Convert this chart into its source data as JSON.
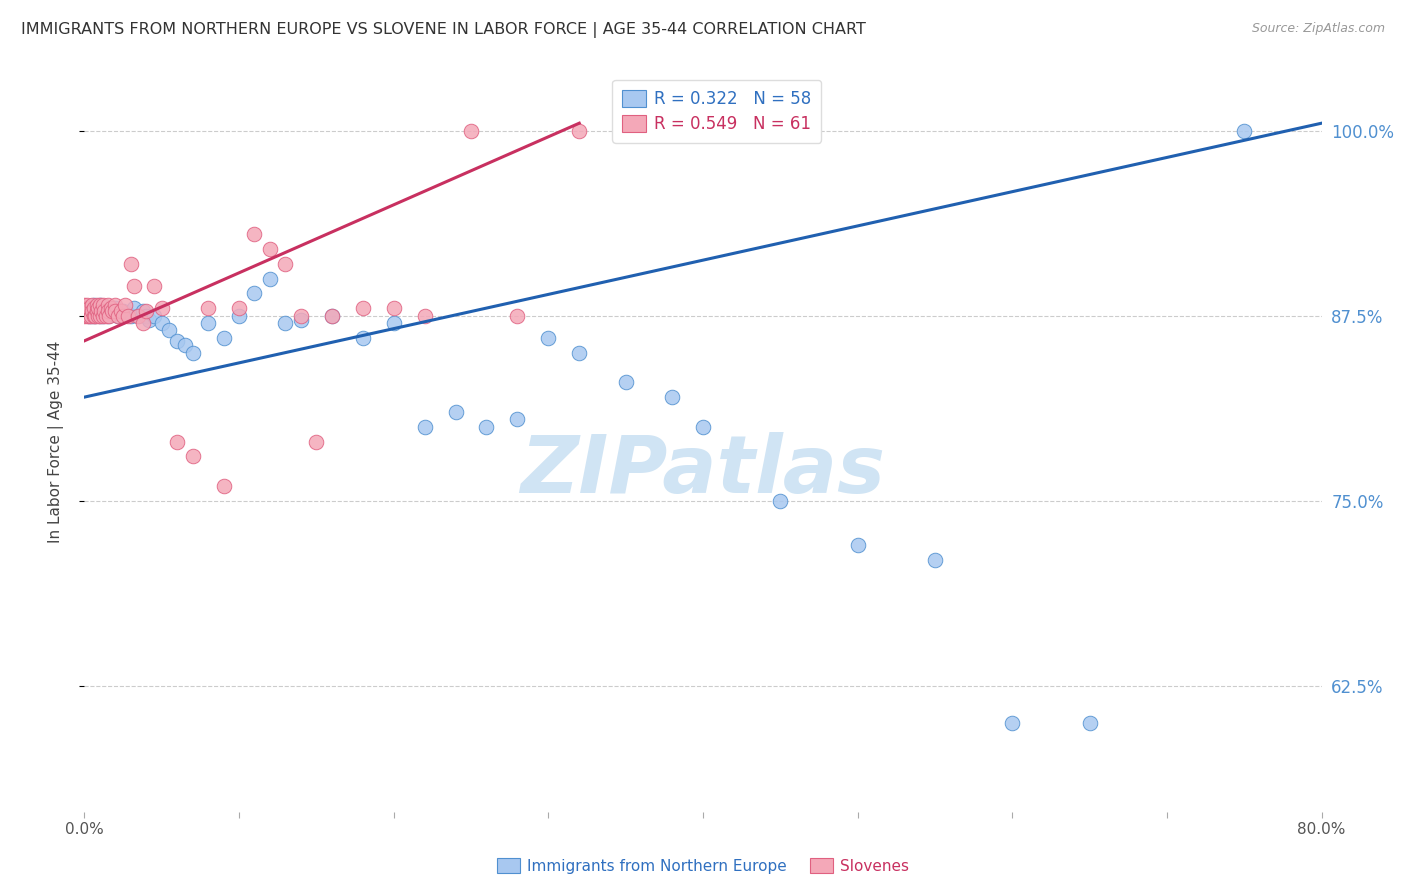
{
  "title": "IMMIGRANTS FROM NORTHERN EUROPE VS SLOVENE IN LABOR FORCE | AGE 35-44 CORRELATION CHART",
  "source": "Source: ZipAtlas.com",
  "ylabel": "In Labor Force | Age 35-44",
  "y_ticks": [
    0.625,
    0.75,
    0.875,
    1.0
  ],
  "y_tick_labels": [
    "62.5%",
    "75.0%",
    "87.5%",
    "100.0%"
  ],
  "xlim": [
    0.0,
    0.8
  ],
  "ylim": [
    0.54,
    1.04
  ],
  "blue_R": 0.322,
  "blue_N": 58,
  "pink_R": 0.549,
  "pink_N": 61,
  "blue_color": "#A8C8F0",
  "pink_color": "#F4A8B8",
  "blue_edge_color": "#5090D0",
  "pink_edge_color": "#E06080",
  "blue_line_color": "#2060B0",
  "pink_line_color": "#C83060",
  "legend_blue_color": "#3070C0",
  "legend_pink_color": "#C83060",
  "right_tick_color": "#5090D0",
  "watermark": "ZIPatlas",
  "watermark_color": "#D0E4F4",
  "title_color": "#333333",
  "blue_scatter_x": [
    0.002,
    0.003,
    0.004,
    0.005,
    0.006,
    0.007,
    0.008,
    0.009,
    0.01,
    0.01,
    0.012,
    0.013,
    0.014,
    0.015,
    0.015,
    0.016,
    0.018,
    0.02,
    0.022,
    0.025,
    0.028,
    0.03,
    0.032,
    0.035,
    0.038,
    0.04,
    0.042,
    0.045,
    0.05,
    0.055,
    0.06,
    0.065,
    0.07,
    0.08,
    0.09,
    0.1,
    0.11,
    0.12,
    0.13,
    0.14,
    0.16,
    0.18,
    0.2,
    0.22,
    0.24,
    0.26,
    0.28,
    0.3,
    0.32,
    0.35,
    0.38,
    0.4,
    0.45,
    0.5,
    0.55,
    0.6,
    0.65,
    0.75
  ],
  "blue_scatter_y": [
    0.88,
    0.875,
    0.878,
    0.875,
    0.882,
    0.875,
    0.878,
    0.88,
    0.875,
    0.882,
    0.875,
    0.878,
    0.876,
    0.875,
    0.88,
    0.878,
    0.876,
    0.88,
    0.875,
    0.878,
    0.876,
    0.875,
    0.88,
    0.875,
    0.878,
    0.875,
    0.872,
    0.875,
    0.87,
    0.865,
    0.858,
    0.855,
    0.85,
    0.87,
    0.86,
    0.875,
    0.89,
    0.9,
    0.87,
    0.872,
    0.875,
    0.86,
    0.87,
    0.8,
    0.81,
    0.8,
    0.805,
    0.86,
    0.85,
    0.83,
    0.82,
    0.8,
    0.75,
    0.72,
    0.71,
    0.6,
    0.6,
    1.0
  ],
  "pink_scatter_x": [
    0.0,
    0.0,
    0.0,
    0.001,
    0.002,
    0.002,
    0.003,
    0.003,
    0.004,
    0.005,
    0.005,
    0.006,
    0.006,
    0.007,
    0.008,
    0.008,
    0.009,
    0.009,
    0.01,
    0.01,
    0.011,
    0.012,
    0.012,
    0.013,
    0.014,
    0.015,
    0.015,
    0.016,
    0.017,
    0.018,
    0.02,
    0.02,
    0.022,
    0.024,
    0.025,
    0.026,
    0.028,
    0.03,
    0.032,
    0.035,
    0.038,
    0.04,
    0.045,
    0.05,
    0.06,
    0.07,
    0.08,
    0.09,
    0.1,
    0.11,
    0.12,
    0.13,
    0.14,
    0.15,
    0.16,
    0.18,
    0.2,
    0.22,
    0.25,
    0.28,
    0.32
  ],
  "pink_scatter_y": [
    0.875,
    0.882,
    0.878,
    0.88,
    0.875,
    0.882,
    0.875,
    0.88,
    0.875,
    0.882,
    0.878,
    0.875,
    0.88,
    0.875,
    0.878,
    0.882,
    0.875,
    0.88,
    0.875,
    0.882,
    0.878,
    0.875,
    0.882,
    0.878,
    0.875,
    0.882,
    0.878,
    0.875,
    0.88,
    0.878,
    0.882,
    0.878,
    0.875,
    0.878,
    0.875,
    0.882,
    0.875,
    0.91,
    0.895,
    0.875,
    0.87,
    0.878,
    0.895,
    0.88,
    0.79,
    0.78,
    0.88,
    0.76,
    0.88,
    0.93,
    0.92,
    0.91,
    0.875,
    0.79,
    0.875,
    0.88,
    0.88,
    0.875,
    1.0,
    0.875,
    1.0
  ],
  "blue_trend_x0": 0.0,
  "blue_trend_x1": 0.8,
  "blue_trend_y0": 0.82,
  "blue_trend_y1": 1.005,
  "pink_trend_x0": 0.0,
  "pink_trend_x1": 0.32,
  "pink_trend_y0": 0.858,
  "pink_trend_y1": 1.005
}
